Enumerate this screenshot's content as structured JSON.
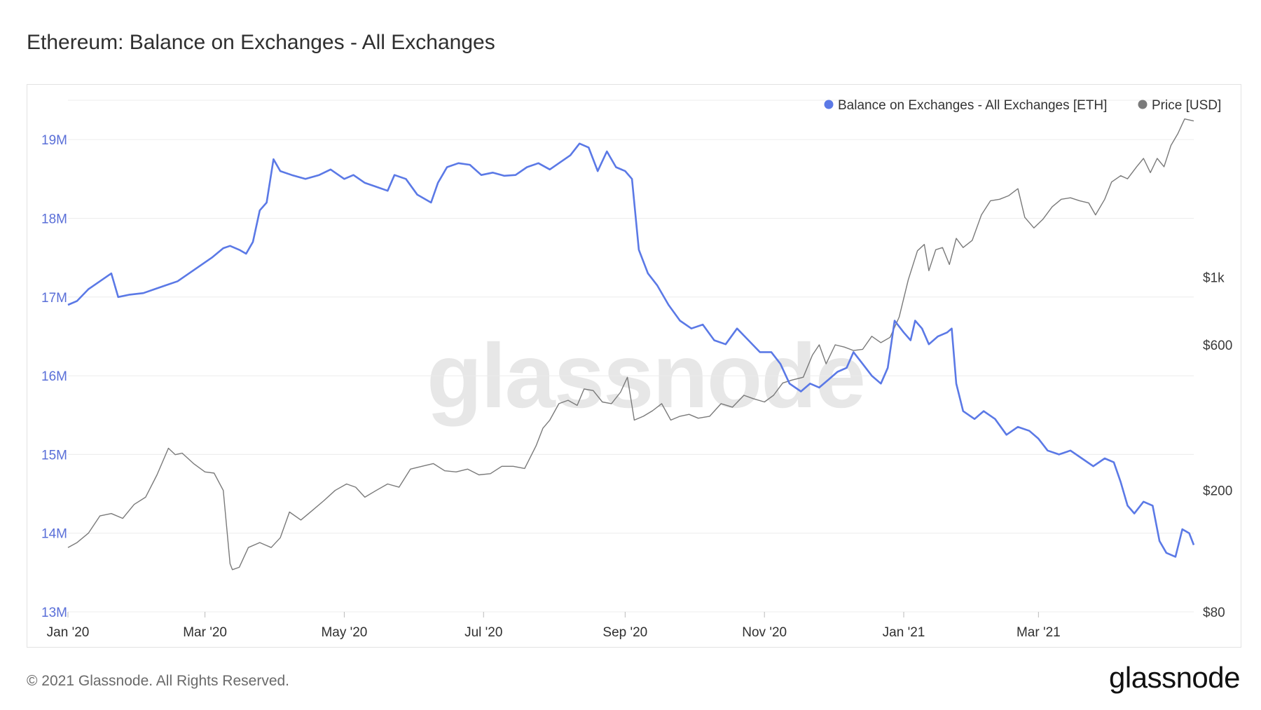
{
  "title": "Ethereum: Balance on Exchanges - All Exchanges",
  "footer": "© 2021 Glassnode. All Rights Reserved.",
  "logo": "glassnode",
  "watermark": "glassnode",
  "colors": {
    "balance": "#5b79e6",
    "price": "#7a7a7a",
    "grid": "#ececec"
  },
  "chart_data": {
    "type": "line",
    "x_ticks": [
      "Jan '20",
      "Mar '20",
      "May '20",
      "Jul '20",
      "Sep '20",
      "Nov '20",
      "Jan '21",
      "Mar '21"
    ],
    "legend_placement": "top-right",
    "grid": true,
    "left_axis": {
      "ticks": [
        "13M",
        "14M",
        "15M",
        "16M",
        "17M",
        "18M",
        "19M"
      ],
      "ylim": [
        13000000,
        19500000
      ]
    },
    "right_axis": {
      "scale": "log",
      "ticks": [
        "$80",
        "$200",
        "$600",
        "$1k"
      ]
    },
    "series": [
      {
        "name": "Balance on Exchanges - All Exchanges [ETH]",
        "axis": "left",
        "unit": "ETH",
        "points": [
          [
            "2020-01-01",
            16900000
          ],
          [
            "2020-01-05",
            16950000
          ],
          [
            "2020-01-10",
            17100000
          ],
          [
            "2020-01-15",
            17200000
          ],
          [
            "2020-01-20",
            17300000
          ],
          [
            "2020-01-23",
            17000000
          ],
          [
            "2020-01-28",
            17030000
          ],
          [
            "2020-02-03",
            17050000
          ],
          [
            "2020-02-08",
            17100000
          ],
          [
            "2020-02-13",
            17150000
          ],
          [
            "2020-02-18",
            17200000
          ],
          [
            "2020-02-23",
            17300000
          ],
          [
            "2020-02-28",
            17400000
          ],
          [
            "2020-03-04",
            17500000
          ],
          [
            "2020-03-09",
            17620000
          ],
          [
            "2020-03-12",
            17650000
          ],
          [
            "2020-03-16",
            17600000
          ],
          [
            "2020-03-19",
            17550000
          ],
          [
            "2020-03-22",
            17700000
          ],
          [
            "2020-03-25",
            18100000
          ],
          [
            "2020-03-28",
            18200000
          ],
          [
            "2020-03-31",
            18750000
          ],
          [
            "2020-04-03",
            18600000
          ],
          [
            "2020-04-08",
            18550000
          ],
          [
            "2020-04-14",
            18500000
          ],
          [
            "2020-04-20",
            18550000
          ],
          [
            "2020-04-25",
            18620000
          ],
          [
            "2020-05-01",
            18500000
          ],
          [
            "2020-05-05",
            18550000
          ],
          [
            "2020-05-10",
            18450000
          ],
          [
            "2020-05-15",
            18400000
          ],
          [
            "2020-05-20",
            18350000
          ],
          [
            "2020-05-23",
            18550000
          ],
          [
            "2020-05-28",
            18500000
          ],
          [
            "2020-06-02",
            18300000
          ],
          [
            "2020-06-08",
            18200000
          ],
          [
            "2020-06-11",
            18450000
          ],
          [
            "2020-06-15",
            18650000
          ],
          [
            "2020-06-20",
            18700000
          ],
          [
            "2020-06-25",
            18680000
          ],
          [
            "2020-06-30",
            18550000
          ],
          [
            "2020-07-05",
            18580000
          ],
          [
            "2020-07-10",
            18540000
          ],
          [
            "2020-07-15",
            18550000
          ],
          [
            "2020-07-20",
            18650000
          ],
          [
            "2020-07-25",
            18700000
          ],
          [
            "2020-07-30",
            18620000
          ],
          [
            "2020-08-03",
            18700000
          ],
          [
            "2020-08-08",
            18800000
          ],
          [
            "2020-08-12",
            18950000
          ],
          [
            "2020-08-16",
            18900000
          ],
          [
            "2020-08-20",
            18600000
          ],
          [
            "2020-08-24",
            18850000
          ],
          [
            "2020-08-28",
            18650000
          ],
          [
            "2020-09-01",
            18600000
          ],
          [
            "2020-09-04",
            18500000
          ],
          [
            "2020-09-07",
            17600000
          ],
          [
            "2020-09-11",
            17300000
          ],
          [
            "2020-09-15",
            17150000
          ],
          [
            "2020-09-20",
            16900000
          ],
          [
            "2020-09-25",
            16700000
          ],
          [
            "2020-09-30",
            16600000
          ],
          [
            "2020-10-05",
            16650000
          ],
          [
            "2020-10-10",
            16450000
          ],
          [
            "2020-10-15",
            16400000
          ],
          [
            "2020-10-20",
            16600000
          ],
          [
            "2020-10-25",
            16450000
          ],
          [
            "2020-10-30",
            16300000
          ],
          [
            "2020-11-04",
            16300000
          ],
          [
            "2020-11-08",
            16150000
          ],
          [
            "2020-11-12",
            15900000
          ],
          [
            "2020-11-17",
            15800000
          ],
          [
            "2020-11-21",
            15900000
          ],
          [
            "2020-11-25",
            15850000
          ],
          [
            "2020-11-29",
            15950000
          ],
          [
            "2020-12-03",
            16050000
          ],
          [
            "2020-12-07",
            16100000
          ],
          [
            "2020-12-10",
            16300000
          ],
          [
            "2020-12-14",
            16150000
          ],
          [
            "2020-12-18",
            16000000
          ],
          [
            "2020-12-22",
            15900000
          ],
          [
            "2020-12-25",
            16100000
          ],
          [
            "2020-12-28",
            16700000
          ],
          [
            "2021-01-01",
            16550000
          ],
          [
            "2021-01-04",
            16450000
          ],
          [
            "2021-01-06",
            16700000
          ],
          [
            "2021-01-09",
            16600000
          ],
          [
            "2021-01-12",
            16400000
          ],
          [
            "2021-01-16",
            16500000
          ],
          [
            "2021-01-20",
            16550000
          ],
          [
            "2021-01-22",
            16600000
          ],
          [
            "2021-01-24",
            15900000
          ],
          [
            "2021-01-27",
            15550000
          ],
          [
            "2021-02-01",
            15450000
          ],
          [
            "2021-02-05",
            15550000
          ],
          [
            "2021-02-10",
            15450000
          ],
          [
            "2021-02-15",
            15250000
          ],
          [
            "2021-02-20",
            15350000
          ],
          [
            "2021-02-25",
            15300000
          ],
          [
            "2021-03-01",
            15200000
          ],
          [
            "2021-03-05",
            15050000
          ],
          [
            "2021-03-10",
            15000000
          ],
          [
            "2021-03-15",
            15050000
          ],
          [
            "2021-03-20",
            14950000
          ],
          [
            "2021-03-25",
            14850000
          ],
          [
            "2021-03-30",
            14950000
          ],
          [
            "2021-04-03",
            14900000
          ],
          [
            "2021-04-06",
            14650000
          ],
          [
            "2021-04-09",
            14350000
          ],
          [
            "2021-04-12",
            14250000
          ],
          [
            "2021-04-16",
            14400000
          ],
          [
            "2021-04-20",
            14350000
          ],
          [
            "2021-04-23",
            13900000
          ],
          [
            "2021-04-26",
            13750000
          ],
          [
            "2021-04-30",
            13700000
          ],
          [
            "2021-05-03",
            14050000
          ],
          [
            "2021-05-06",
            14000000
          ],
          [
            "2021-05-08",
            13850000
          ]
        ]
      },
      {
        "name": "Price [USD]",
        "axis": "right",
        "unit": "USD",
        "points": [
          [
            "2020-01-01",
            130
          ],
          [
            "2020-01-05",
            135
          ],
          [
            "2020-01-10",
            145
          ],
          [
            "2020-01-15",
            165
          ],
          [
            "2020-01-20",
            168
          ],
          [
            "2020-01-25",
            162
          ],
          [
            "2020-01-30",
            180
          ],
          [
            "2020-02-04",
            190
          ],
          [
            "2020-02-09",
            225
          ],
          [
            "2020-02-14",
            275
          ],
          [
            "2020-02-17",
            262
          ],
          [
            "2020-02-20",
            265
          ],
          [
            "2020-02-25",
            245
          ],
          [
            "2020-03-01",
            230
          ],
          [
            "2020-03-05",
            228
          ],
          [
            "2020-03-09",
            200
          ],
          [
            "2020-03-12",
            115
          ],
          [
            "2020-03-13",
            110
          ],
          [
            "2020-03-16",
            112
          ],
          [
            "2020-03-20",
            130
          ],
          [
            "2020-03-25",
            135
          ],
          [
            "2020-03-30",
            130
          ],
          [
            "2020-04-03",
            140
          ],
          [
            "2020-04-07",
            170
          ],
          [
            "2020-04-12",
            160
          ],
          [
            "2020-04-17",
            172
          ],
          [
            "2020-04-22",
            185
          ],
          [
            "2020-04-27",
            200
          ],
          [
            "2020-05-02",
            210
          ],
          [
            "2020-05-06",
            205
          ],
          [
            "2020-05-10",
            190
          ],
          [
            "2020-05-15",
            200
          ],
          [
            "2020-05-20",
            210
          ],
          [
            "2020-05-25",
            205
          ],
          [
            "2020-05-30",
            235
          ],
          [
            "2020-06-04",
            240
          ],
          [
            "2020-06-09",
            245
          ],
          [
            "2020-06-14",
            232
          ],
          [
            "2020-06-19",
            230
          ],
          [
            "2020-06-24",
            235
          ],
          [
            "2020-06-29",
            225
          ],
          [
            "2020-07-04",
            227
          ],
          [
            "2020-07-09",
            240
          ],
          [
            "2020-07-14",
            240
          ],
          [
            "2020-07-19",
            236
          ],
          [
            "2020-07-24",
            280
          ],
          [
            "2020-07-27",
            320
          ],
          [
            "2020-07-30",
            340
          ],
          [
            "2020-08-03",
            385
          ],
          [
            "2020-08-07",
            395
          ],
          [
            "2020-08-11",
            380
          ],
          [
            "2020-08-14",
            430
          ],
          [
            "2020-08-18",
            425
          ],
          [
            "2020-08-22",
            390
          ],
          [
            "2020-08-26",
            385
          ],
          [
            "2020-08-30",
            420
          ],
          [
            "2020-09-02",
            470
          ],
          [
            "2020-09-05",
            340
          ],
          [
            "2020-09-09",
            350
          ],
          [
            "2020-09-13",
            365
          ],
          [
            "2020-09-17",
            385
          ],
          [
            "2020-09-21",
            340
          ],
          [
            "2020-09-25",
            350
          ],
          [
            "2020-09-29",
            355
          ],
          [
            "2020-10-03",
            345
          ],
          [
            "2020-10-08",
            350
          ],
          [
            "2020-10-13",
            385
          ],
          [
            "2020-10-18",
            375
          ],
          [
            "2020-10-23",
            410
          ],
          [
            "2020-10-27",
            400
          ],
          [
            "2020-11-01",
            390
          ],
          [
            "2020-11-05",
            410
          ],
          [
            "2020-11-09",
            450
          ],
          [
            "2020-11-13",
            460
          ],
          [
            "2020-11-18",
            470
          ],
          [
            "2020-11-22",
            555
          ],
          [
            "2020-11-25",
            600
          ],
          [
            "2020-11-28",
            520
          ],
          [
            "2020-12-02",
            600
          ],
          [
            "2020-12-06",
            590
          ],
          [
            "2020-12-10",
            575
          ],
          [
            "2020-12-14",
            580
          ],
          [
            "2020-12-18",
            640
          ],
          [
            "2020-12-22",
            610
          ],
          [
            "2020-12-26",
            635
          ],
          [
            "2020-12-30",
            740
          ],
          [
            "2021-01-03",
            980
          ],
          [
            "2021-01-07",
            1220
          ],
          [
            "2021-01-10",
            1280
          ],
          [
            "2021-01-12",
            1050
          ],
          [
            "2021-01-15",
            1230
          ],
          [
            "2021-01-18",
            1250
          ],
          [
            "2021-01-21",
            1100
          ],
          [
            "2021-01-24",
            1340
          ],
          [
            "2021-01-27",
            1250
          ],
          [
            "2021-01-31",
            1320
          ],
          [
            "2021-02-04",
            1600
          ],
          [
            "2021-02-08",
            1780
          ],
          [
            "2021-02-12",
            1800
          ],
          [
            "2021-02-16",
            1850
          ],
          [
            "2021-02-20",
            1950
          ],
          [
            "2021-02-23",
            1570
          ],
          [
            "2021-02-27",
            1450
          ],
          [
            "2021-03-03",
            1550
          ],
          [
            "2021-03-07",
            1700
          ],
          [
            "2021-03-11",
            1800
          ],
          [
            "2021-03-15",
            1820
          ],
          [
            "2021-03-19",
            1780
          ],
          [
            "2021-03-23",
            1750
          ],
          [
            "2021-03-26",
            1600
          ],
          [
            "2021-03-30",
            1800
          ],
          [
            "2021-04-02",
            2050
          ],
          [
            "2021-04-06",
            2150
          ],
          [
            "2021-04-09",
            2100
          ],
          [
            "2021-04-13",
            2300
          ],
          [
            "2021-04-16",
            2450
          ],
          [
            "2021-04-19",
            2200
          ],
          [
            "2021-04-22",
            2450
          ],
          [
            "2021-04-25",
            2300
          ],
          [
            "2021-04-28",
            2700
          ],
          [
            "2021-05-01",
            2950
          ],
          [
            "2021-05-04",
            3300
          ],
          [
            "2021-05-08",
            3250
          ]
        ]
      }
    ]
  }
}
